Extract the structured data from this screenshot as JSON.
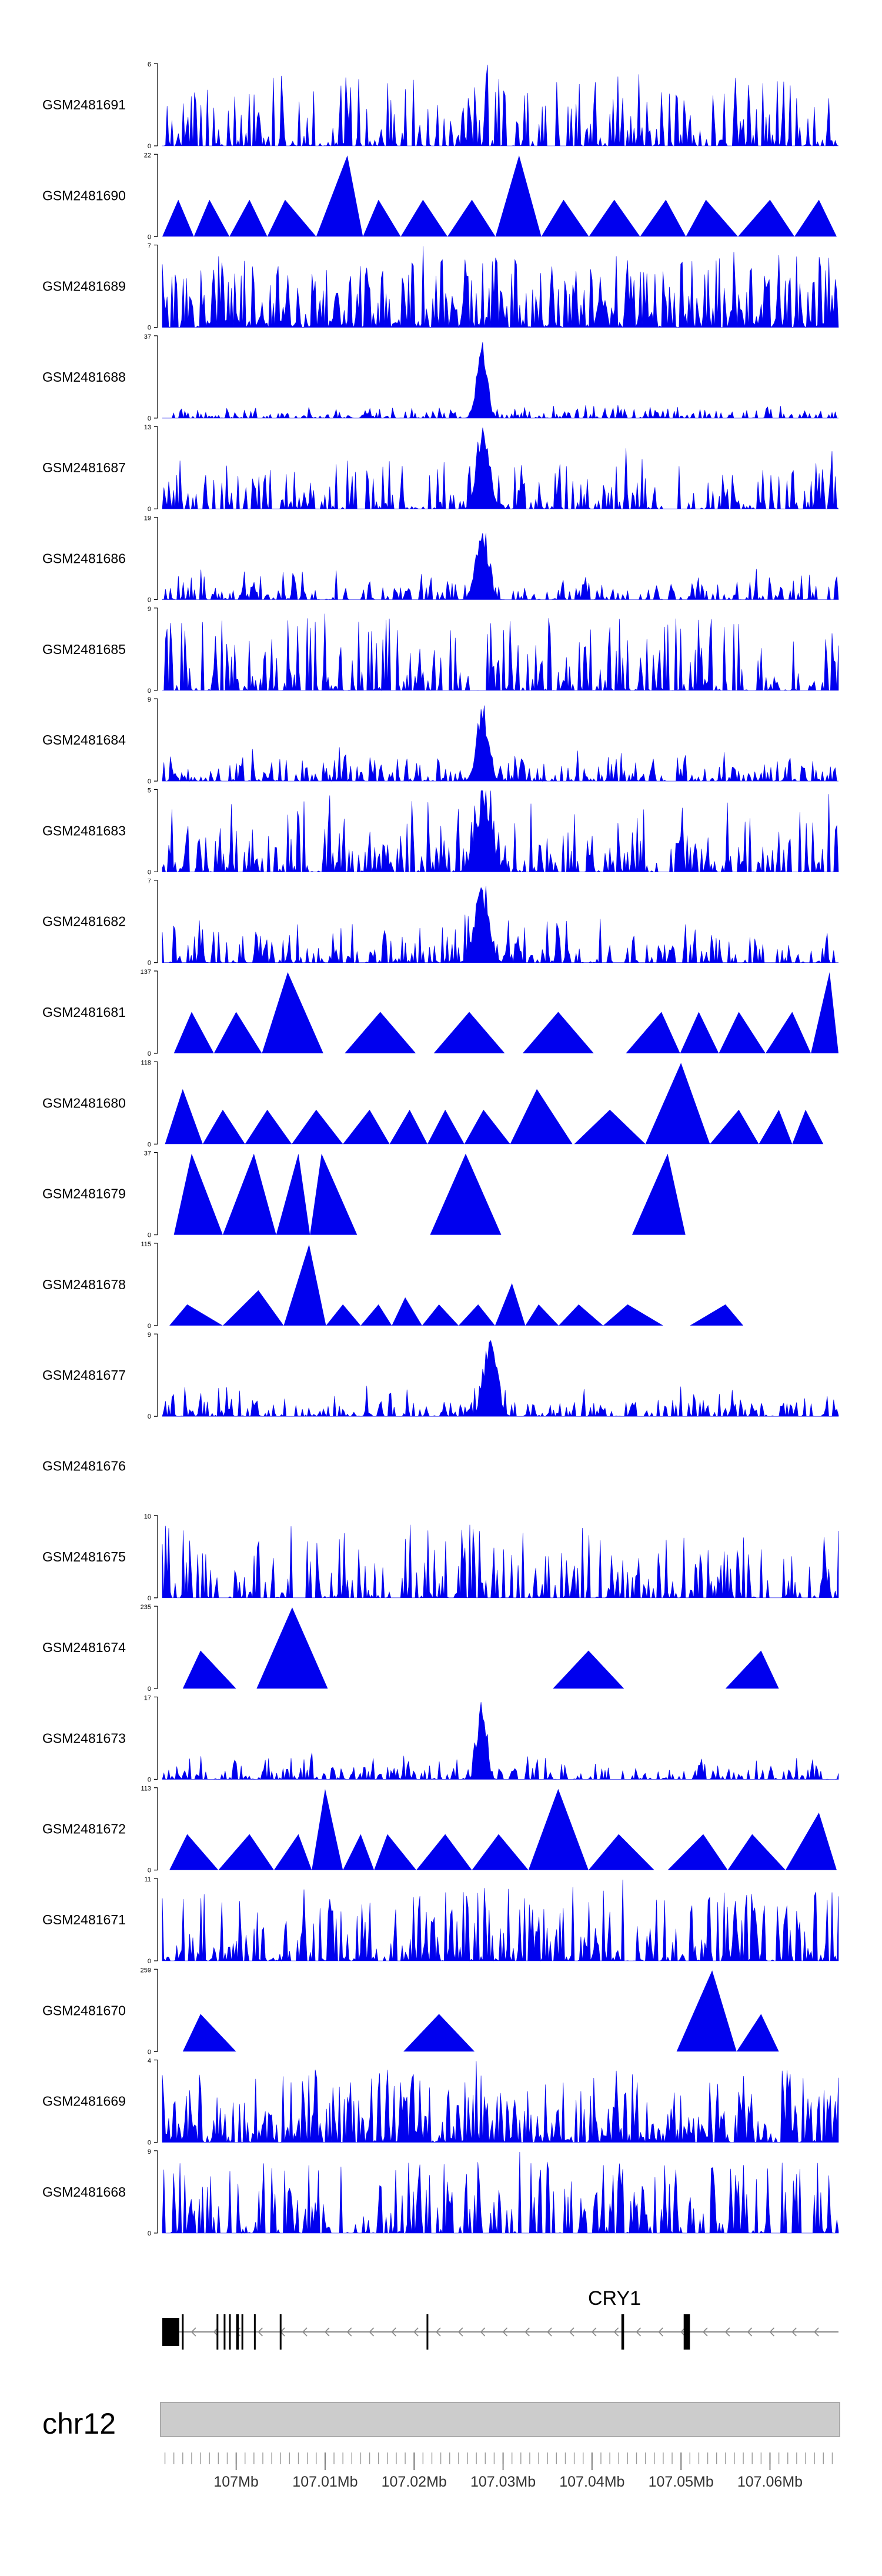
{
  "chart_data": {
    "type": "area",
    "title": "",
    "xlabel": "",
    "ylabel": "",
    "chromosome": "chr12",
    "xlim": [
      106.9917,
      107.0677
    ],
    "x_ticks": [
      107.0,
      107.01,
      107.02,
      107.03,
      107.04,
      107.05,
      107.06
    ],
    "x_tick_labels": [
      "107Mb",
      "107.01Mb",
      "107.02Mb",
      "107.03Mb",
      "107.04Mb",
      "107.05Mb",
      "107.06Mb"
    ],
    "gene": {
      "name": "CRY1",
      "start": 106.9917,
      "end": 107.0677,
      "strand": "-",
      "exons": [
        {
          "start": 106.9917,
          "end": 106.9936
        },
        {
          "start": 106.9939,
          "end": 106.9941
        },
        {
          "start": 106.9978,
          "end": 106.998
        },
        {
          "start": 106.9986,
          "end": 106.9988
        },
        {
          "start": 106.9992,
          "end": 106.9994
        },
        {
          "start": 107.0,
          "end": 107.0003
        },
        {
          "start": 107.0006,
          "end": 107.0008
        },
        {
          "start": 107.002,
          "end": 107.0022
        },
        {
          "start": 107.0049,
          "end": 107.0051
        },
        {
          "start": 107.0214,
          "end": 107.0216
        },
        {
          "start": 107.0433,
          "end": 107.0436
        },
        {
          "start": 107.0503,
          "end": 107.051
        }
      ]
    },
    "series": [
      {
        "name": "GSM2481691",
        "ymax": 6,
        "pattern": "noise",
        "seed": 11,
        "density": 0.6,
        "peaks": [
          {
            "x": 107.0283,
            "h": 6
          },
          {
            "x": 107.0575,
            "h": 4.5
          }
        ]
      },
      {
        "name": "GSM2481690",
        "ymax": 22,
        "pattern": "tri",
        "points": [
          [
            106.9935,
            10
          ],
          [
            106.997,
            10
          ],
          [
            107.0015,
            10
          ],
          [
            107.0055,
            10
          ],
          [
            107.0125,
            22
          ],
          [
            107.016,
            10
          ],
          [
            107.021,
            10
          ],
          [
            107.0265,
            10
          ],
          [
            107.0318,
            22
          ],
          [
            107.0368,
            10
          ],
          [
            107.0425,
            10
          ],
          [
            107.0483,
            10
          ],
          [
            107.0528,
            10
          ],
          [
            107.06,
            10
          ],
          [
            107.0655,
            10
          ]
        ]
      },
      {
        "name": "GSM2481689",
        "ymax": 7,
        "pattern": "noise",
        "seed": 23,
        "density": 0.9,
        "peaks": [
          {
            "x": 107.021,
            "h": 7
          },
          {
            "x": 107.0292,
            "h": 6
          },
          {
            "x": 107.056,
            "h": 6.5
          }
        ]
      },
      {
        "name": "GSM2481688",
        "ymax": 37,
        "pattern": "spike",
        "seed": 37,
        "base": 0.08,
        "center": 107.0276,
        "width": 0.0008,
        "peak": 37
      },
      {
        "name": "GSM2481687",
        "ymax": 13,
        "pattern": "spike",
        "seed": 41,
        "base": 0.35,
        "center": 107.0278,
        "width": 0.001,
        "peak": 13
      },
      {
        "name": "GSM2481686",
        "ymax": 19,
        "pattern": "spike",
        "seed": 53,
        "base": 0.2,
        "center": 107.0276,
        "width": 0.0009,
        "peak": 19
      },
      {
        "name": "GSM2481685",
        "ymax": 9,
        "pattern": "noise",
        "seed": 61,
        "density": 0.55,
        "peaks": [
          {
            "x": 107.01,
            "h": 8.5
          },
          {
            "x": 107.0352,
            "h": 8
          }
        ]
      },
      {
        "name": "GSM2481684",
        "ymax": 9,
        "pattern": "spike",
        "seed": 71,
        "base": 0.2,
        "center": 107.0277,
        "width": 0.0009,
        "peak": 9
      },
      {
        "name": "GSM2481683",
        "ymax": 5,
        "pattern": "spike",
        "seed": 83,
        "base": 0.45,
        "center": 107.0278,
        "width": 0.0012,
        "peak": 5
      },
      {
        "name": "GSM2481682",
        "ymax": 7,
        "pattern": "spike",
        "seed": 97,
        "base": 0.3,
        "center": 107.0276,
        "width": 0.0011,
        "peak": 7
      },
      {
        "name": "GSM2481681",
        "ymax": 137,
        "pattern": "tri",
        "points": [
          [
            106.995,
            70
          ],
          [
            107.0,
            70
          ],
          [
            107.0058,
            137
          ],
          [
            107.0162,
            70
          ],
          [
            107.0262,
            70
          ],
          [
            107.0362,
            70
          ],
          [
            107.0478,
            70
          ],
          [
            107.052,
            70
          ],
          [
            107.0565,
            70
          ],
          [
            107.0625,
            70
          ],
          [
            107.0667,
            137
          ]
        ]
      },
      {
        "name": "GSM2481680",
        "ymax": 118,
        "pattern": "tri",
        "points": [
          [
            106.994,
            80
          ],
          [
            106.9985,
            50
          ],
          [
            107.0035,
            50
          ],
          [
            107.009,
            50
          ],
          [
            107.015,
            50
          ],
          [
            107.0195,
            50
          ],
          [
            107.0235,
            50
          ],
          [
            107.0278,
            50
          ],
          [
            107.0338,
            80
          ],
          [
            107.042,
            50
          ],
          [
            107.05,
            118
          ],
          [
            107.0565,
            50
          ],
          [
            107.061,
            50
          ],
          [
            107.064,
            50
          ]
        ]
      },
      {
        "name": "GSM2481679",
        "ymax": 37,
        "pattern": "tri",
        "points": [
          [
            106.995,
            37
          ],
          [
            107.002,
            37
          ],
          [
            107.007,
            37
          ],
          [
            107.0096,
            37
          ],
          [
            107.0258,
            37
          ],
          [
            107.0485,
            37
          ]
        ]
      },
      {
        "name": "GSM2481678",
        "ymax": 115,
        "pattern": "tri",
        "points": [
          [
            106.9945,
            30
          ],
          [
            107.0025,
            50
          ],
          [
            107.0082,
            115
          ],
          [
            107.012,
            30
          ],
          [
            107.016,
            30
          ],
          [
            107.019,
            40
          ],
          [
            107.0228,
            30
          ],
          [
            107.0272,
            30
          ],
          [
            107.031,
            60
          ],
          [
            107.034,
            30
          ],
          [
            107.0385,
            30
          ],
          [
            107.044,
            30
          ],
          [
            107.055,
            30
          ]
        ]
      },
      {
        "name": "GSM2481677",
        "ymax": 9,
        "pattern": "spike",
        "seed": 109,
        "base": 0.2,
        "center": 107.0286,
        "width": 0.001,
        "peak": 9
      },
      {
        "name": "GSM2481676",
        "ymax": null,
        "pattern": "empty"
      },
      {
        "name": "GSM2481675",
        "ymax": 10,
        "pattern": "noise",
        "seed": 127,
        "density": 0.5,
        "peaks": [
          {
            "x": 107.0195,
            "h": 9
          },
          {
            "x": 107.0262,
            "h": 9
          },
          {
            "x": 107.0322,
            "h": 8
          }
        ]
      },
      {
        "name": "GSM2481674",
        "ymax": 235,
        "pattern": "tri",
        "points": [
          [
            106.996,
            110
          ],
          [
            107.0063,
            235
          ],
          [
            107.0396,
            110
          ],
          [
            107.059,
            110
          ]
        ]
      },
      {
        "name": "GSM2481673",
        "ymax": 17,
        "pattern": "spike",
        "seed": 139,
        "base": 0.16,
        "center": 107.0276,
        "width": 0.0007,
        "peak": 17
      },
      {
        "name": "GSM2481672",
        "ymax": 113,
        "pattern": "tri",
        "points": [
          [
            106.9945,
            50
          ],
          [
            107.0015,
            50
          ],
          [
            107.007,
            50
          ],
          [
            107.01,
            113
          ],
          [
            107.014,
            50
          ],
          [
            107.017,
            50
          ],
          [
            107.0235,
            50
          ],
          [
            107.0295,
            50
          ],
          [
            107.0362,
            113
          ],
          [
            107.043,
            50
          ],
          [
            107.0525,
            50
          ],
          [
            107.058,
            50
          ],
          [
            107.0655,
            80
          ]
        ]
      },
      {
        "name": "GSM2481671",
        "ymax": 11,
        "pattern": "noise",
        "seed": 151,
        "density": 0.7,
        "peaks": [
          {
            "x": 107.0378,
            "h": 10
          },
          {
            "x": 107.0435,
            "h": 11
          }
        ]
      },
      {
        "name": "GSM2481670",
        "ymax": 259,
        "pattern": "tri",
        "points": [
          [
            106.996,
            120
          ],
          [
            107.0228,
            120
          ],
          [
            107.0535,
            259
          ],
          [
            107.059,
            120
          ]
        ]
      },
      {
        "name": "GSM2481669",
        "ymax": 4,
        "pattern": "noise",
        "seed": 163,
        "density": 0.9,
        "peaks": [
          {
            "x": 107.027,
            "h": 4
          }
        ]
      },
      {
        "name": "GSM2481668",
        "ymax": 9,
        "pattern": "noise",
        "seed": 173,
        "density": 0.55,
        "peaks": [
          {
            "x": 107.0318,
            "h": 9
          },
          {
            "x": 107.0342,
            "h": 7
          }
        ]
      }
    ]
  }
}
